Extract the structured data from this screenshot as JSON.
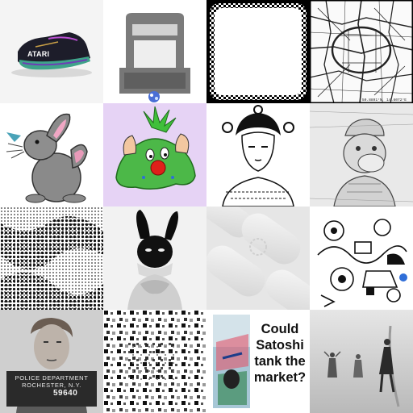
{
  "gallery": {
    "tiles": [
      {
        "name": "sneaker",
        "text": "ATARI"
      },
      {
        "name": "gameboy-stand"
      },
      {
        "name": "checkered-frame"
      },
      {
        "name": "street-map",
        "coords": "50.8891°N, 14.6072°E"
      },
      {
        "name": "gray-rabbit"
      },
      {
        "name": "muscle-blob"
      },
      {
        "name": "geisha-sketch"
      },
      {
        "name": "ape-sketch"
      },
      {
        "name": "halftone-noise"
      },
      {
        "name": "bunny-mask-portrait"
      },
      {
        "name": "white-embossed"
      },
      {
        "name": "doodle-collage"
      },
      {
        "name": "mugshot",
        "line1": "POLICE DEPARTMENT",
        "line2": "ROCHESTER, N.Y.",
        "number": "59640"
      },
      {
        "name": "pixel-squares"
      },
      {
        "name": "satoshi-meme",
        "lines": [
          "Could",
          "Satoshi",
          "tank the",
          "market?"
        ]
      },
      {
        "name": "foggy-street"
      }
    ]
  },
  "colors": {
    "background": "#ffffff",
    "purple": "#e6d3f5",
    "green": "#3fbf3a",
    "red": "#e0201a"
  }
}
